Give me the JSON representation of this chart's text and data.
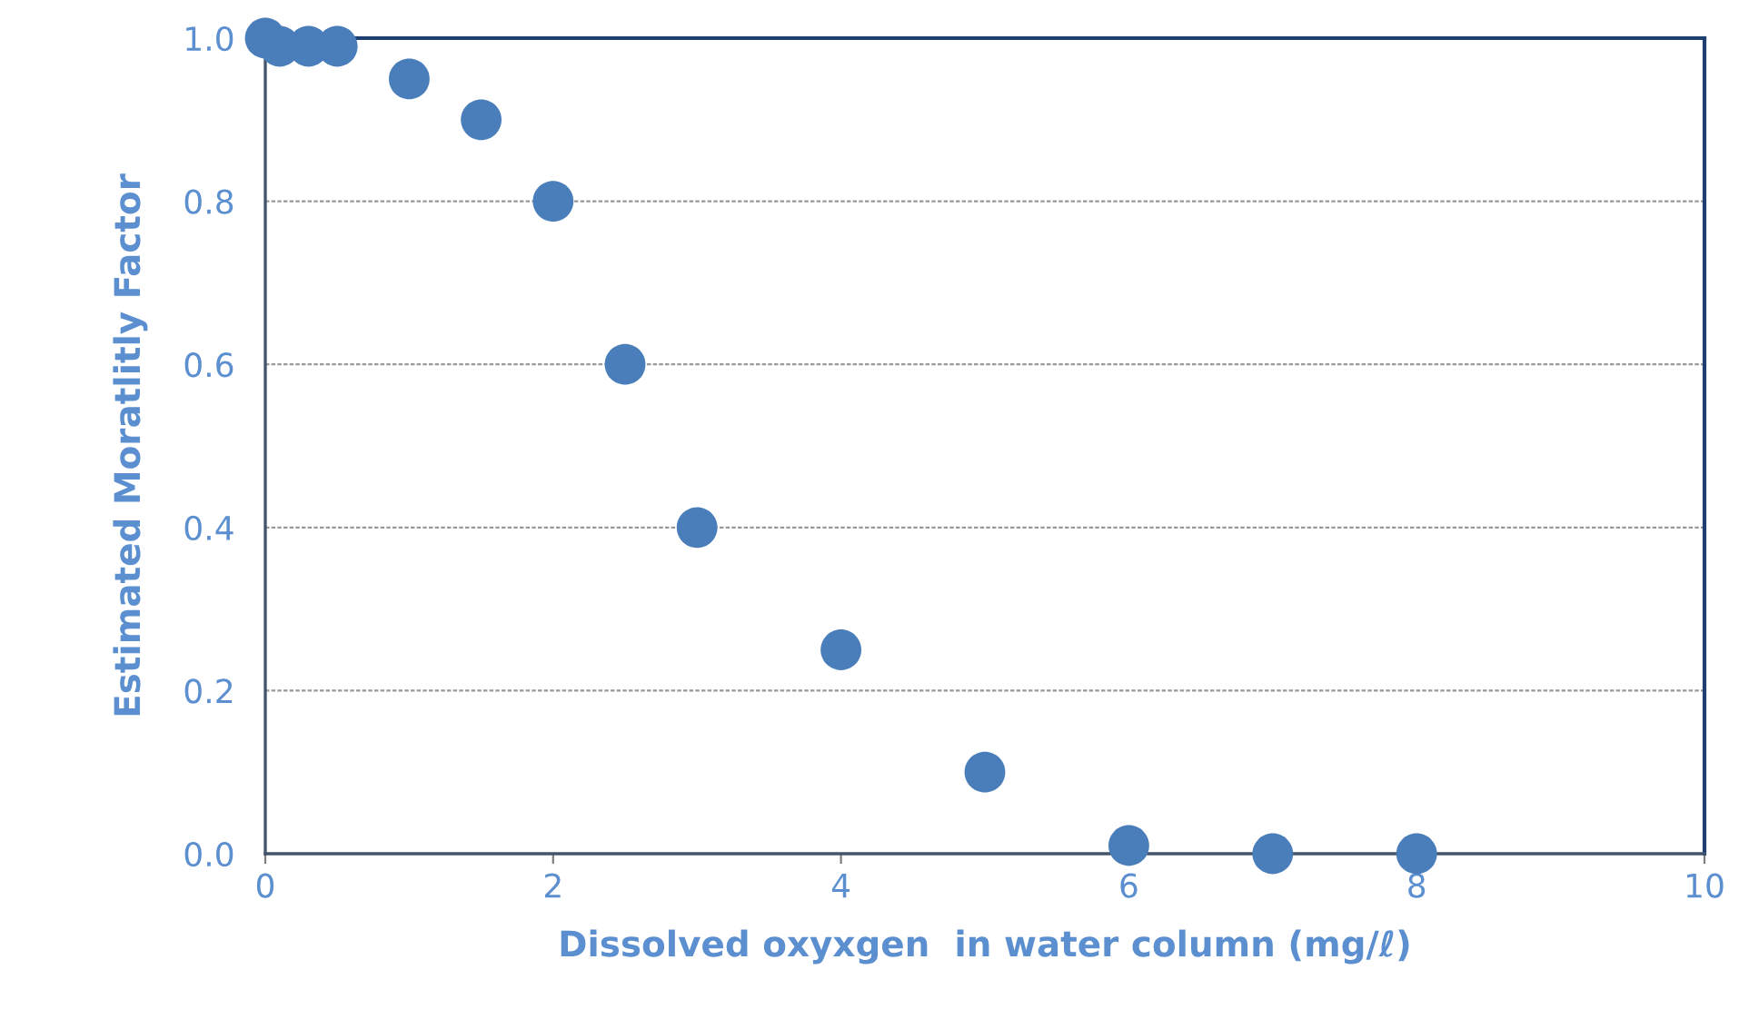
{
  "chart_data": {
    "type": "scatter",
    "xlabel": "Dissolved oxyxgen  in water column (mg/ℓ)",
    "ylabel": "Estimated Moratlitly Factor",
    "x": [
      0,
      0.1,
      0.3,
      0.5,
      1,
      1.5,
      2,
      2.5,
      3,
      4,
      5,
      6,
      7,
      8
    ],
    "series": [
      {
        "color": "#4a7ebb",
        "values": [
          1.0,
          0.99,
          0.99,
          0.99,
          0.95,
          0.9,
          0.8,
          0.6,
          0.4,
          0.25,
          0.1,
          0.01,
          0,
          0
        ]
      }
    ],
    "xlim": [
      0,
      10
    ],
    "xticks": [
      0,
      2,
      4,
      6,
      8,
      10
    ],
    "ylim": [
      0,
      1
    ],
    "yticks": [
      {
        "value": 0,
        "label": "0.0"
      },
      0.2,
      0.4,
      0.6,
      0.8,
      {
        "value": 1,
        "label": "1.0"
      }
    ],
    "grid": "y",
    "marker": "circle",
    "legend": false
  }
}
